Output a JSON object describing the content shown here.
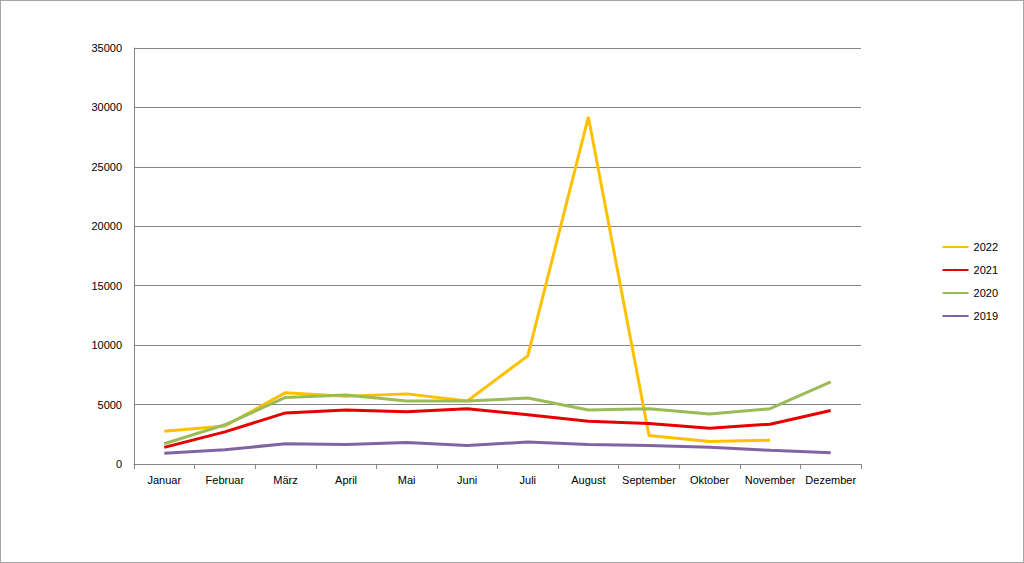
{
  "chart_data": {
    "type": "line",
    "categories": [
      "Januar",
      "Februar",
      "März",
      "April",
      "Mai",
      "Juni",
      "Juli",
      "August",
      "September",
      "Oktober",
      "November",
      "Dezember"
    ],
    "series": [
      {
        "name": "2022",
        "color": "#ffc000",
        "values": [
          2750,
          3200,
          6000,
          5700,
          5900,
          5300,
          9100,
          29200,
          2400,
          1900,
          2000,
          null
        ]
      },
      {
        "name": "2021",
        "color": "#e60000",
        "values": [
          1400,
          2700,
          4300,
          4550,
          4400,
          4650,
          4150,
          3600,
          3400,
          3000,
          3350,
          4500
        ]
      },
      {
        "name": "2020",
        "color": "#9bbb59",
        "values": [
          1700,
          3300,
          5600,
          5800,
          5300,
          5300,
          5550,
          4550,
          4650,
          4200,
          4650,
          6900
        ]
      },
      {
        "name": "2019",
        "color": "#8064a2",
        "values": [
          900,
          1200,
          1700,
          1650,
          1800,
          1550,
          1850,
          1650,
          1550,
          1400,
          1150,
          950
        ]
      }
    ],
    "ylim": [
      0,
      35000
    ],
    "yticks": [
      0,
      5000,
      10000,
      15000,
      20000,
      25000,
      30000,
      35000
    ],
    "grid": true,
    "legend": "right"
  }
}
